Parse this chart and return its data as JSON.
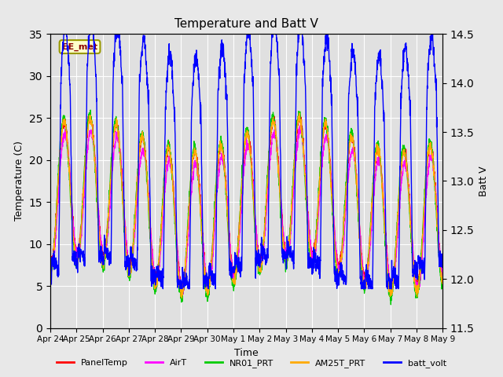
{
  "title": "Temperature and Batt V",
  "xlabel": "Time",
  "ylabel_left": "Temperature (C)",
  "ylabel_right": "Batt V",
  "ylim_left": [
    0,
    35
  ],
  "ylim_right": [
    11.5,
    14.5
  ],
  "annotation": "EE_met",
  "legend_labels": [
    "PanelTemp",
    "AirT",
    "NR01_PRT",
    "AM25T_PRT",
    "batt_volt"
  ],
  "legend_colors": [
    "#ff0000",
    "#ff00ff",
    "#00cc00",
    "#ffaa00",
    "#0000ff"
  ],
  "xtick_labels": [
    "Apr 24",
    "Apr 25",
    "Apr 26",
    "Apr 27",
    "Apr 28",
    "Apr 29",
    "Apr 30",
    "May 1",
    "May 2",
    "May 3",
    "May 4",
    "May 5",
    "May 6",
    "May 7",
    "May 8",
    "May 9"
  ],
  "bg_color": "#e8e8e8",
  "plot_bg_color": "#e0e0e0",
  "grid_color": "#ffffff",
  "n_days": 15,
  "pts_per_day": 144
}
